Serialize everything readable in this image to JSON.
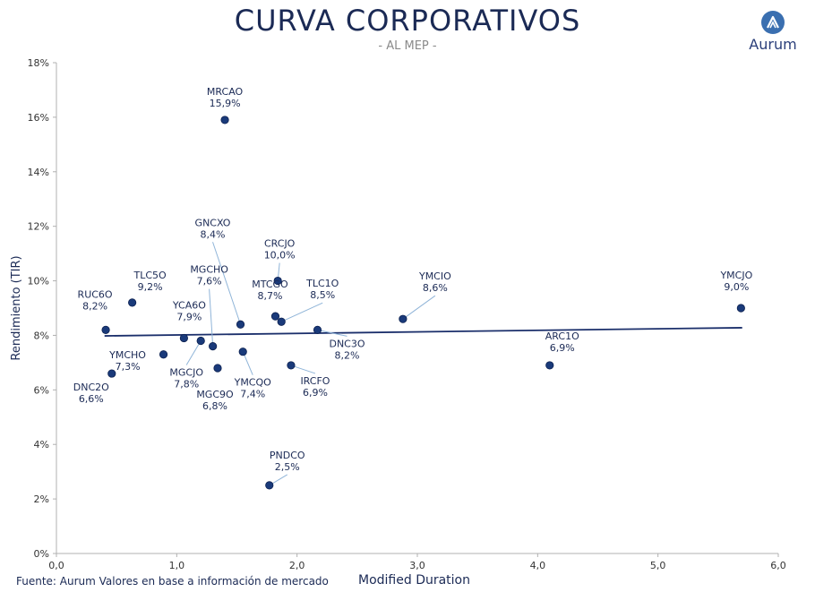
{
  "header": {
    "title": "CURVA CORPORATIVOS",
    "subtitle": "- AL MEP -",
    "logo_text": "Aurum"
  },
  "footer": {
    "source": "Fuente: Aurum Valores en base a información de mercado"
  },
  "colors": {
    "point": "#1a3a7a",
    "trend": "#1b2f6b",
    "leader": "#8fb4d8",
    "label": "#1b2a55",
    "logo_bg": "#3a6fb0"
  },
  "chart_data": {
    "type": "scatter",
    "title": "CURVA CORPORATIVOS",
    "subtitle": "- AL MEP -",
    "xlabel": "Modified Duration",
    "ylabel": "Rendimiento (TIR)",
    "xlim": [
      0,
      6
    ],
    "ylim": [
      0,
      18
    ],
    "xticks": [
      "0,0",
      "1,0",
      "2,0",
      "3,0",
      "4,0",
      "5,0",
      "6,0"
    ],
    "yticks": [
      "0%",
      "2%",
      "4%",
      "6%",
      "8%",
      "10%",
      "12%",
      "14%",
      "16%",
      "18%"
    ],
    "trendline": {
      "x": [
        0.4,
        5.7
      ],
      "y": [
        7.98,
        8.28
      ]
    },
    "points": [
      {
        "name": "MRCAO",
        "label": "15,9%",
        "x": 1.4,
        "y": 15.9
      },
      {
        "name": "GNCXO",
        "label": "8,4%",
        "x": 1.53,
        "y": 8.4
      },
      {
        "name": "CRCJO",
        "label": "10,0%",
        "x": 1.84,
        "y": 10.0
      },
      {
        "name": "MGCHO",
        "label": "7,6%",
        "x": 1.3,
        "y": 7.6
      },
      {
        "name": "MTCGO",
        "label": "8,7%",
        "x": 1.82,
        "y": 8.7
      },
      {
        "name": "TLC1O",
        "label": "8,5%",
        "x": 1.87,
        "y": 8.5
      },
      {
        "name": "TLC5O",
        "label": "9,2%",
        "x": 0.63,
        "y": 9.2
      },
      {
        "name": "RUC6O",
        "label": "8,2%",
        "x": 0.41,
        "y": 8.2
      },
      {
        "name": "YCA6O",
        "label": "7,9%",
        "x": 1.06,
        "y": 7.9
      },
      {
        "name": "YMCHO",
        "label": "7,3%",
        "x": 0.89,
        "y": 7.3
      },
      {
        "name": "MGCJO",
        "label": "7,8%",
        "x": 1.2,
        "y": 7.8
      },
      {
        "name": "YMCQO",
        "label": "7,4%",
        "x": 1.55,
        "y": 7.4
      },
      {
        "name": "MGC9O",
        "label": "6,8%",
        "x": 1.34,
        "y": 6.8
      },
      {
        "name": "DNC2O",
        "label": "6,6%",
        "x": 0.46,
        "y": 6.6
      },
      {
        "name": "IRCFO",
        "label": "6,9%",
        "x": 1.95,
        "y": 6.9
      },
      {
        "name": "DNC3O",
        "label": "8,2%",
        "x": 2.17,
        "y": 8.2
      },
      {
        "name": "YMCIO",
        "label": "8,6%",
        "x": 2.88,
        "y": 8.6
      },
      {
        "name": "ARC1O",
        "label": "6,9%",
        "x": 4.1,
        "y": 6.9
      },
      {
        "name": "YMCJO",
        "label": "9,0%",
        "x": 5.69,
        "y": 9.0
      },
      {
        "name": "PNDCO",
        "label": "2,5%",
        "x": 1.77,
        "y": 2.5
      }
    ]
  }
}
